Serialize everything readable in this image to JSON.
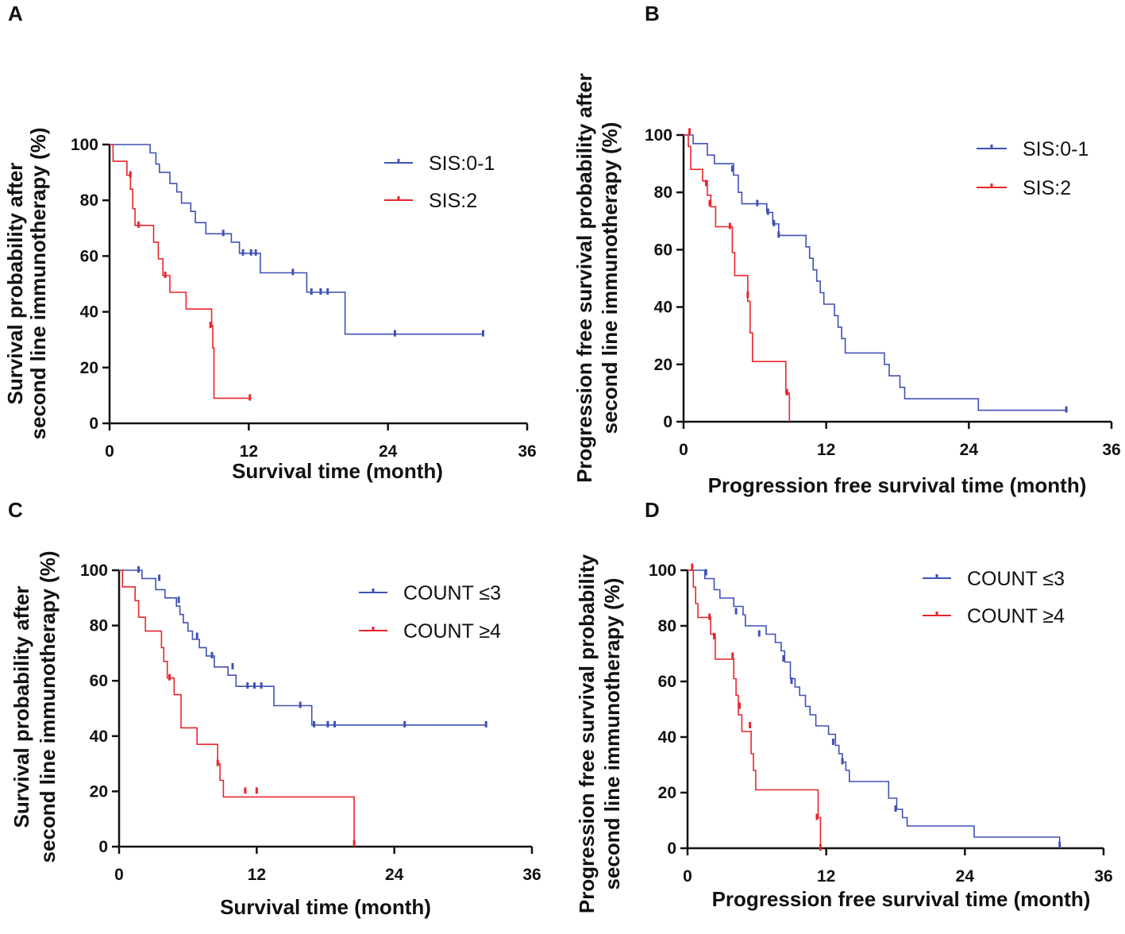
{
  "colors": {
    "blue": "#3F51B5",
    "red": "#E8262B",
    "axis": "#111111"
  },
  "chart_data": [
    {
      "panel": "A",
      "type": "line",
      "xlabel": "Survival time (month)",
      "ylabel": [
        "Survival probability after",
        "second line immunotherapy (%)"
      ],
      "xticks": [
        0,
        12,
        24,
        36
      ],
      "yticks": [
        0,
        20,
        40,
        60,
        80,
        100
      ],
      "xlim": [
        0,
        36
      ],
      "ylim": [
        0,
        100
      ],
      "series": [
        {
          "name": "SIS:0-1",
          "color": "blue",
          "steps": [
            [
              0,
              100
            ],
            [
              3.5,
              97
            ],
            [
              4,
              93
            ],
            [
              4.3,
              90
            ],
            [
              5.2,
              86
            ],
            [
              5.8,
              83
            ],
            [
              6.2,
              79
            ],
            [
              7,
              76
            ],
            [
              7.4,
              72
            ],
            [
              8.3,
              68
            ],
            [
              10.5,
              65
            ],
            [
              11.2,
              61
            ],
            [
              13,
              54
            ],
            [
              17,
              47
            ],
            [
              20.3,
              32
            ],
            [
              32.2,
              32
            ]
          ],
          "censors": [
            [
              9.8,
              68
            ],
            [
              11.5,
              61
            ],
            [
              12.2,
              61
            ],
            [
              12.6,
              61
            ],
            [
              15.8,
              54
            ],
            [
              17.4,
              47
            ],
            [
              18.2,
              47
            ],
            [
              18.8,
              47
            ],
            [
              24.6,
              32
            ],
            [
              32.2,
              32
            ]
          ]
        },
        {
          "name": "SIS:2",
          "color": "red",
          "steps": [
            [
              0,
              100
            ],
            [
              0.3,
              94
            ],
            [
              1.5,
              89
            ],
            [
              1.8,
              84
            ],
            [
              2,
              77
            ],
            [
              2.2,
              71
            ],
            [
              3.8,
              65
            ],
            [
              4.2,
              59
            ],
            [
              4.6,
              53
            ],
            [
              5.2,
              47
            ],
            [
              6.6,
              41
            ],
            [
              8.8,
              35
            ],
            [
              8.9,
              27
            ],
            [
              9,
              9
            ],
            [
              12.1,
              9
            ]
          ],
          "censors": [
            [
              1.8,
              89
            ],
            [
              2.5,
              71
            ],
            [
              4.8,
              53
            ],
            [
              8.7,
              35
            ],
            [
              12.1,
              9
            ]
          ]
        }
      ]
    },
    {
      "panel": "B",
      "type": "line",
      "xlabel": "Progression free survival time (month)",
      "ylabel": [
        "Progression free survival probability after",
        "second line immunotherapy (%)"
      ],
      "xticks": [
        0,
        12,
        24,
        36
      ],
      "yticks": [
        0,
        20,
        40,
        60,
        80,
        100
      ],
      "xlim": [
        0,
        36
      ],
      "ylim": [
        0,
        100
      ],
      "series": [
        {
          "name": "SIS:0-1",
          "color": "blue",
          "steps": [
            [
              0,
              100
            ],
            [
              0.8,
              97
            ],
            [
              2,
              93
            ],
            [
              2.6,
              90
            ],
            [
              4.2,
              86
            ],
            [
              4.6,
              80
            ],
            [
              4.9,
              76
            ],
            [
              7,
              73
            ],
            [
              7.5,
              69
            ],
            [
              8,
              65
            ],
            [
              10.3,
              61
            ],
            [
              10.6,
              57
            ],
            [
              10.9,
              53
            ],
            [
              11.2,
              49
            ],
            [
              11.5,
              45
            ],
            [
              11.8,
              41
            ],
            [
              12.7,
              37
            ],
            [
              13,
              33
            ],
            [
              13.3,
              29
            ],
            [
              13.6,
              24
            ],
            [
              16.9,
              20
            ],
            [
              17.3,
              16
            ],
            [
              18.2,
              12
            ],
            [
              18.6,
              8
            ],
            [
              24.8,
              4
            ],
            [
              32.2,
              4
            ]
          ],
          "censors": [
            [
              4.1,
              88
            ],
            [
              6.2,
              76
            ],
            [
              7.1,
              73
            ],
            [
              7.6,
              69
            ],
            [
              8,
              65
            ],
            [
              32.2,
              4
            ]
          ]
        },
        {
          "name": "SIS:2",
          "color": "red",
          "steps": [
            [
              0,
              100
            ],
            [
              0.4,
              96
            ],
            [
              0.6,
              88
            ],
            [
              1.6,
              84
            ],
            [
              2,
              79
            ],
            [
              2.3,
              75
            ],
            [
              2.7,
              68
            ],
            [
              4.1,
              59
            ],
            [
              4.3,
              51
            ],
            [
              5.4,
              42
            ],
            [
              5.6,
              31
            ],
            [
              5.8,
              21
            ],
            [
              8.6,
              10
            ],
            [
              8.9,
              0
            ]
          ],
          "censors": [
            [
              0.5,
              101
            ],
            [
              1.9,
              83
            ],
            [
              2.2,
              76
            ],
            [
              3.9,
              68
            ],
            [
              5.4,
              44
            ],
            [
              8.7,
              10
            ]
          ]
        }
      ]
    },
    {
      "panel": "C",
      "type": "line",
      "xlabel": "Survival time (month)",
      "ylabel": [
        "Survival probability after",
        "second line immunotherapy (%)"
      ],
      "xticks": [
        0,
        12,
        24,
        36
      ],
      "yticks": [
        0,
        20,
        40,
        60,
        80,
        100
      ],
      "xlim": [
        0,
        36
      ],
      "ylim": [
        0,
        100
      ],
      "series": [
        {
          "name": "COUNT ≤3",
          "color": "blue",
          "steps": [
            [
              0,
              100
            ],
            [
              2,
              97
            ],
            [
              3.2,
              93
            ],
            [
              4,
              90
            ],
            [
              5,
              87
            ],
            [
              5.3,
              84
            ],
            [
              5.6,
              81
            ],
            [
              6,
              78
            ],
            [
              6.4,
              75
            ],
            [
              7,
              72
            ],
            [
              7.6,
              69
            ],
            [
              8.3,
              65
            ],
            [
              9.5,
              62
            ],
            [
              10.2,
              58
            ],
            [
              13.5,
              51
            ],
            [
              16.8,
              44
            ],
            [
              32,
              44
            ]
          ],
          "censors": [
            [
              1.7,
              100
            ],
            [
              3.5,
              97
            ],
            [
              5.2,
              89
            ],
            [
              6.8,
              76
            ],
            [
              8.1,
              69
            ],
            [
              9.9,
              65
            ],
            [
              11.2,
              58
            ],
            [
              11.8,
              58
            ],
            [
              12.4,
              58
            ],
            [
              15.8,
              51
            ],
            [
              17,
              44
            ],
            [
              18.2,
              44
            ],
            [
              18.8,
              44
            ],
            [
              24.9,
              44
            ],
            [
              32,
              44
            ]
          ]
        },
        {
          "name": "COUNT ≥4",
          "color": "red",
          "steps": [
            [
              0,
              100
            ],
            [
              0.3,
              94
            ],
            [
              1.4,
              89
            ],
            [
              1.7,
              83
            ],
            [
              2.3,
              78
            ],
            [
              3.7,
              72
            ],
            [
              3.9,
              67
            ],
            [
              4.2,
              61
            ],
            [
              4.8,
              55
            ],
            [
              5.4,
              43
            ],
            [
              6.8,
              37
            ],
            [
              8.6,
              30
            ],
            [
              8.8,
              24
            ],
            [
              9.1,
              18
            ],
            [
              20.5,
              0
            ]
          ],
          "censors": [
            [
              4.4,
              61
            ],
            [
              8.6,
              30
            ],
            [
              11,
              20
            ],
            [
              12,
              20
            ],
            [
              20.5,
              1
            ]
          ]
        }
      ]
    },
    {
      "panel": "D",
      "type": "line",
      "xlabel": "Progression free survival time (month)",
      "ylabel": [
        "Progression free survival probability",
        "second line immunotherapy (%)"
      ],
      "xticks": [
        0,
        12,
        24,
        36
      ],
      "yticks": [
        0,
        20,
        40,
        60,
        80,
        100
      ],
      "xlim": [
        0,
        36
      ],
      "ylim": [
        0,
        100
      ],
      "series": [
        {
          "name": "COUNT ≤3",
          "color": "blue",
          "steps": [
            [
              0,
              100
            ],
            [
              1.5,
              97
            ],
            [
              2.3,
              93
            ],
            [
              2.8,
              90
            ],
            [
              4,
              87
            ],
            [
              4.8,
              84
            ],
            [
              5,
              80
            ],
            [
              6.8,
              77
            ],
            [
              7.6,
              74
            ],
            [
              8.1,
              71
            ],
            [
              8.4,
              67
            ],
            [
              8.9,
              61
            ],
            [
              9.3,
              58
            ],
            [
              9.7,
              55
            ],
            [
              10.2,
              51
            ],
            [
              10.6,
              48
            ],
            [
              11.1,
              44
            ],
            [
              12.2,
              41
            ],
            [
              12.8,
              37
            ],
            [
              13.1,
              34
            ],
            [
              13.4,
              31
            ],
            [
              13.7,
              28
            ],
            [
              14,
              24
            ],
            [
              17.4,
              18
            ],
            [
              18.1,
              14
            ],
            [
              18.6,
              11
            ],
            [
              19,
              8
            ],
            [
              24.8,
              4
            ],
            [
              32.2,
              0
            ]
          ],
          "censors": [
            [
              1.6,
              99
            ],
            [
              4.2,
              85
            ],
            [
              6.2,
              77
            ],
            [
              8.3,
              68
            ],
            [
              9,
              60
            ],
            [
              12.6,
              38
            ],
            [
              13.4,
              31
            ],
            [
              18,
              14
            ],
            [
              32.2,
              1
            ]
          ]
        },
        {
          "name": "COUNT ≥4",
          "color": "red",
          "steps": [
            [
              0,
              100
            ],
            [
              0.5,
              94
            ],
            [
              0.7,
              88
            ],
            [
              0.9,
              83
            ],
            [
              2,
              77
            ],
            [
              2.4,
              68
            ],
            [
              4,
              61
            ],
            [
              4.2,
              55
            ],
            [
              4.4,
              48
            ],
            [
              4.7,
              42
            ],
            [
              5.5,
              34
            ],
            [
              5.7,
              28
            ],
            [
              5.9,
              21
            ],
            [
              11.3,
              11
            ],
            [
              11.5,
              0
            ]
          ],
          "censors": [
            [
              0.4,
              101
            ],
            [
              1.9,
              83
            ],
            [
              2.3,
              76
            ],
            [
              3.9,
              69
            ],
            [
              4.5,
              51
            ],
            [
              5.4,
              44
            ],
            [
              11.2,
              11
            ],
            [
              11.5,
              0
            ]
          ]
        }
      ]
    }
  ]
}
